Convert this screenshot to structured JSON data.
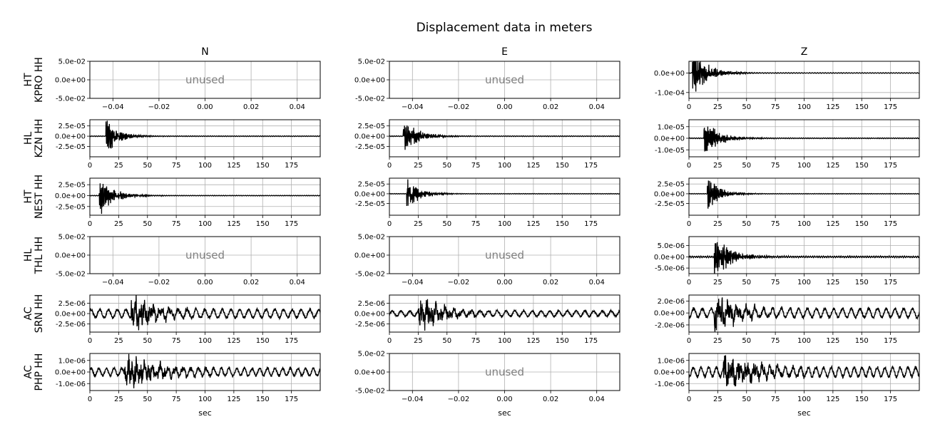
{
  "chart_data": {
    "type": "line",
    "title": "Displacement data in meters",
    "columns": [
      "N",
      "E",
      "Z"
    ],
    "xlabel": "sec",
    "unused_label": "unused",
    "line_color": "#000000",
    "grid": true,
    "rows": [
      {
        "label_line1": "HT",
        "label_line2": "KPRO HH",
        "panels": [
          {
            "unused": true,
            "xlim": [
              -0.05,
              0.05
            ],
            "xticks": [
              "−0.04",
              "−0.02",
              "0.00",
              "0.02",
              "0.04"
            ],
            "xtick_values": [
              -0.04,
              -0.02,
              0,
              0.02,
              0.04
            ],
            "ylim": [
              -0.05,
              0.05
            ],
            "yticks": [
              "5.0e-02",
              "0.0e+00",
              "-5.0e-02"
            ],
            "ytick_values": [
              0.05,
              0,
              -0.05
            ]
          },
          {
            "unused": true,
            "xlim": [
              -0.05,
              0.05
            ],
            "xticks": [
              "−0.04",
              "−0.02",
              "0.00",
              "0.02",
              "0.04"
            ],
            "xtick_values": [
              -0.04,
              -0.02,
              0,
              0.02,
              0.04
            ],
            "ylim": [
              -0.05,
              0.05
            ],
            "yticks": [
              "5.0e-02",
              "0.0e+00",
              "-5.0e-02"
            ],
            "ytick_values": [
              0.05,
              0,
              -0.05
            ]
          },
          {
            "unused": false,
            "xlim": [
              0,
              200
            ],
            "xticks": [
              "0",
              "25",
              "50",
              "75",
              "100",
              "125",
              "150",
              "175"
            ],
            "xtick_values": [
              0,
              25,
              50,
              75,
              100,
              125,
              150,
              175
            ],
            "ylim": [
              -0.00013,
              6e-05
            ],
            "yticks": [
              "0.0e+00",
              "-1.0e-04"
            ],
            "ytick_values": [
              0,
              -0.0001
            ],
            "trace": {
              "onset": 3,
              "peak": 0.00011,
              "decay": 12,
              "noise": 2e-06,
              "period": 1.2,
              "seed": 11
            }
          }
        ]
      },
      {
        "label_line1": "HL",
        "label_line2": "KZN HH",
        "panels": [
          {
            "unused": false,
            "xlim": [
              0,
              200
            ],
            "xticks": [
              "0",
              "25",
              "50",
              "75",
              "100",
              "125",
              "150",
              "175"
            ],
            "xtick_values": [
              0,
              25,
              50,
              75,
              100,
              125,
              150,
              175
            ],
            "ylim": [
              -5e-05,
              4e-05
            ],
            "yticks": [
              "2.5e-05",
              "0.0e+00",
              "-2.5e-05"
            ],
            "ytick_values": [
              2.5e-05,
              0,
              -2.5e-05
            ],
            "trace": {
              "onset": 14,
              "peak": 4e-05,
              "decay": 10,
              "noise": 1e-06,
              "period": 1.0,
              "seed": 21
            }
          },
          {
            "unused": false,
            "xlim": [
              0,
              200
            ],
            "xticks": [
              "0",
              "25",
              "50",
              "75",
              "100",
              "125",
              "150",
              "175"
            ],
            "xtick_values": [
              0,
              25,
              50,
              75,
              100,
              125,
              150,
              175
            ],
            "ylim": [
              -5e-05,
              4e-05
            ],
            "yticks": [
              "2.5e-05",
              "0.0e+00",
              "-2.5e-05"
            ],
            "ytick_values": [
              2.5e-05,
              0,
              -2.5e-05
            ],
            "trace": {
              "onset": 12,
              "peak": 3.6e-05,
              "decay": 12,
              "noise": 1e-06,
              "period": 1.0,
              "seed": 22
            }
          },
          {
            "unused": false,
            "xlim": [
              0,
              200
            ],
            "xticks": [
              "0",
              "25",
              "50",
              "75",
              "100",
              "125",
              "150",
              "175"
            ],
            "xtick_values": [
              0,
              25,
              50,
              75,
              100,
              125,
              150,
              175
            ],
            "ylim": [
              -1.6e-05,
              1.6e-05
            ],
            "yticks": [
              "1.0e-05",
              "0.0e+00",
              "-1.0e-05"
            ],
            "ytick_values": [
              1e-05,
              0,
              -1e-05
            ],
            "trace": {
              "onset": 13,
              "peak": 1.4e-05,
              "decay": 12,
              "noise": 4e-07,
              "period": 1.0,
              "seed": 23
            }
          }
        ]
      },
      {
        "label_line1": "HT",
        "label_line2": "NEST HH",
        "panels": [
          {
            "unused": false,
            "xlim": [
              0,
              200
            ],
            "xticks": [
              "0",
              "25",
              "50",
              "75",
              "100",
              "125",
              "150",
              "175"
            ],
            "xtick_values": [
              0,
              25,
              50,
              75,
              100,
              125,
              150,
              175
            ],
            "ylim": [
              -4.5e-05,
              4e-05
            ],
            "yticks": [
              "2.5e-05",
              "0.0e+00",
              "-2.5e-05"
            ],
            "ytick_values": [
              2.5e-05,
              0,
              -2.5e-05
            ],
            "trace": {
              "onset": 8,
              "peak": 3.8e-05,
              "decay": 12,
              "noise": 8e-07,
              "period": 1.0,
              "seed": 31
            }
          },
          {
            "unused": false,
            "xlim": [
              0,
              200
            ],
            "xticks": [
              "0",
              "25",
              "50",
              "75",
              "100",
              "125",
              "150",
              "175"
            ],
            "xtick_values": [
              0,
              25,
              50,
              75,
              100,
              125,
              150,
              175
            ],
            "ylim": [
              -5.5e-05,
              4e-05
            ],
            "yticks": [
              "2.5e-05",
              "0.0e+00",
              "-2.5e-05"
            ],
            "ytick_values": [
              2.5e-05,
              0,
              -2.5e-05
            ],
            "trace": {
              "onset": 15,
              "peak": 4e-05,
              "decay": 10,
              "noise": 8e-07,
              "period": 1.0,
              "seed": 32
            }
          },
          {
            "unused": false,
            "xlim": [
              0,
              200
            ],
            "xticks": [
              "0",
              "25",
              "50",
              "75",
              "100",
              "125",
              "150",
              "175"
            ],
            "xtick_values": [
              0,
              25,
              50,
              75,
              100,
              125,
              150,
              175
            ],
            "ylim": [
              -5.5e-05,
              4e-05
            ],
            "yticks": [
              "2.5e-05",
              "0.0e+00",
              "-2.5e-05"
            ],
            "ytick_values": [
              2.5e-05,
              0,
              -2.5e-05
            ],
            "trace": {
              "onset": 16,
              "peak": 4e-05,
              "decay": 10,
              "noise": 8e-07,
              "period": 1.0,
              "seed": 33
            }
          }
        ]
      },
      {
        "label_line1": "HL",
        "label_line2": "THL HH",
        "panels": [
          {
            "unused": true,
            "xlim": [
              -0.05,
              0.05
            ],
            "xticks": [
              "−0.04",
              "−0.02",
              "0.00",
              "0.02",
              "0.04"
            ],
            "xtick_values": [
              -0.04,
              -0.02,
              0,
              0.02,
              0.04
            ],
            "ylim": [
              -0.05,
              0.05
            ],
            "yticks": [
              "5.0e-02",
              "0.0e+00",
              "-5.0e-02"
            ],
            "ytick_values": [
              0.05,
              0,
              -0.05
            ]
          },
          {
            "unused": true,
            "xlim": [
              -0.05,
              0.05
            ],
            "xticks": [
              "−0.04",
              "−0.02",
              "0.00",
              "0.02",
              "0.04"
            ],
            "xtick_values": [
              -0.04,
              -0.02,
              0,
              0.02,
              0.04
            ],
            "ylim": [
              -0.05,
              0.05
            ],
            "yticks": [
              "5.0e-02",
              "0.0e+00",
              "-5.0e-02"
            ],
            "ytick_values": [
              0.05,
              0,
              -0.05
            ]
          },
          {
            "unused": false,
            "xlim": [
              0,
              200
            ],
            "xticks": [
              "0",
              "25",
              "50",
              "75",
              "100",
              "125",
              "150",
              "175"
            ],
            "xtick_values": [
              0,
              25,
              50,
              75,
              100,
              125,
              150,
              175
            ],
            "ylim": [
              -7.5e-06,
              9e-06
            ],
            "yticks": [
              "5.0e-06",
              "0.0e+00",
              "-5.0e-06"
            ],
            "ytick_values": [
              5e-06,
              0,
              -5e-06
            ],
            "trace": {
              "onset": 22,
              "peak": 8e-06,
              "decay": 14,
              "noise": 4e-07,
              "period": 1.0,
              "seed": 43
            }
          }
        ]
      },
      {
        "label_line1": "AC",
        "label_line2": "SRN HH",
        "panels": [
          {
            "unused": false,
            "xlim": [
              0,
              200
            ],
            "xticks": [
              "0",
              "25",
              "50",
              "75",
              "100",
              "125",
              "150",
              "175"
            ],
            "xtick_values": [
              0,
              25,
              50,
              75,
              100,
              125,
              150,
              175
            ],
            "ylim": [
              -4.5e-06,
              4.5e-06
            ],
            "yticks": [
              "2.5e-06",
              "0.0e+00",
              "-2.5e-06"
            ],
            "ytick_values": [
              2.5e-06,
              0,
              -2.5e-06
            ],
            "trace": {
              "onset": 36,
              "peak": 4.2e-06,
              "decay": 20,
              "noise": 1.2e-06,
              "period": 4.0,
              "seed": 51
            }
          },
          {
            "unused": false,
            "xlim": [
              0,
              200
            ],
            "xticks": [
              "0",
              "25",
              "50",
              "75",
              "100",
              "125",
              "150",
              "175"
            ],
            "xtick_values": [
              0,
              25,
              50,
              75,
              100,
              125,
              150,
              175
            ],
            "ylim": [
              -4.5e-06,
              4.5e-06
            ],
            "yticks": [
              "2.5e-06",
              "0.0e+00",
              "-2.5e-06"
            ],
            "ytick_values": [
              2.5e-06,
              0,
              -2.5e-06
            ],
            "trace": {
              "onset": 25,
              "peak": 4.2e-06,
              "decay": 20,
              "noise": 8e-07,
              "period": 4.0,
              "seed": 52
            }
          },
          {
            "unused": false,
            "xlim": [
              0,
              200
            ],
            "xticks": [
              "0",
              "25",
              "50",
              "75",
              "100",
              "125",
              "150",
              "175"
            ],
            "xtick_values": [
              0,
              25,
              50,
              75,
              100,
              125,
              150,
              175
            ],
            "ylim": [
              -3.2e-06,
              3e-06
            ],
            "yticks": [
              "2.0e-06",
              "0.0e+00",
              "-2.0e-06"
            ],
            "ytick_values": [
              2e-06,
              0,
              -2e-06
            ],
            "trace": {
              "onset": 22,
              "peak": 2.8e-06,
              "decay": 22,
              "noise": 9e-07,
              "period": 4.0,
              "seed": 53
            }
          }
        ]
      },
      {
        "label_line1": "AC",
        "label_line2": "PHP HH",
        "panels": [
          {
            "unused": false,
            "xlim": [
              0,
              200
            ],
            "xticks": [
              "0",
              "25",
              "50",
              "75",
              "100",
              "125",
              "150",
              "175"
            ],
            "xtick_values": [
              0,
              25,
              50,
              75,
              100,
              125,
              150,
              175
            ],
            "ylim": [
              -1.6e-06,
              1.6e-06
            ],
            "yticks": [
              "1.0e-06",
              "0.0e+00",
              "-1.0e-06"
            ],
            "ytick_values": [
              1e-06,
              0,
              -1e-06
            ],
            "trace": {
              "onset": 30,
              "peak": 1.4e-06,
              "decay": 30,
              "noise": 4e-07,
              "period": 3.5,
              "seed": 61
            }
          },
          {
            "unused": true,
            "xlim": [
              -0.05,
              0.05
            ],
            "xticks": [
              "−0.04",
              "−0.02",
              "0.00",
              "0.02",
              "0.04"
            ],
            "xtick_values": [
              -0.04,
              -0.02,
              0,
              0.02,
              0.04
            ],
            "ylim": [
              -0.05,
              0.05
            ],
            "yticks": [
              "5.0e-02",
              "0.0e+00",
              "-5.0e-02"
            ],
            "ytick_values": [
              0.05,
              0,
              -0.05
            ]
          },
          {
            "unused": false,
            "xlim": [
              0,
              200
            ],
            "xticks": [
              "0",
              "25",
              "50",
              "75",
              "100",
              "125",
              "150",
              "175"
            ],
            "xtick_values": [
              0,
              25,
              50,
              75,
              100,
              125,
              150,
              175
            ],
            "ylim": [
              -1.6e-06,
              1.6e-06
            ],
            "yticks": [
              "1.0e-06",
              "0.0e+00",
              "-1.0e-06"
            ],
            "ytick_values": [
              1e-06,
              0,
              -1e-06
            ],
            "trace": {
              "onset": 30,
              "peak": 1.4e-06,
              "decay": 30,
              "noise": 5e-07,
              "period": 3.5,
              "seed": 63
            }
          }
        ]
      }
    ]
  }
}
